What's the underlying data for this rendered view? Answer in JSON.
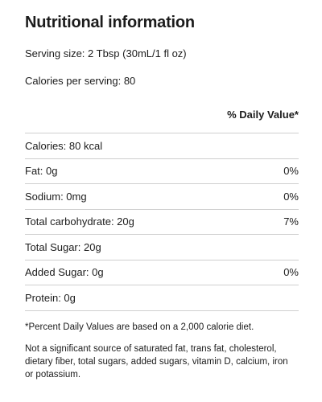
{
  "title": "Nutritional information",
  "serving_size": "Serving size: 2 Tbsp (30mL/1 fl oz)",
  "calories_per_serving": "Calories per serving: 80",
  "daily_value_header": "% Daily Value*",
  "nutrients": [
    {
      "label": "Calories: 80 kcal",
      "dv": ""
    },
    {
      "label": "Fat: 0g",
      "dv": "0%"
    },
    {
      "label": "Sodium: 0mg",
      "dv": "0%"
    },
    {
      "label": "Total carbohydrate: 20g",
      "dv": "7%"
    },
    {
      "label": "Total Sugar: 20g",
      "dv": ""
    },
    {
      "label": "Added Sugar: 0g",
      "dv": "0%"
    },
    {
      "label": "Protein: 0g",
      "dv": ""
    }
  ],
  "footnote": "*Percent Daily Values are based on a 2,000 calorie diet.",
  "disclaimer": "Not a significant source of saturated fat, trans fat, cholesterol, dietary fiber, total sugars, added sugars, vitamin D, calcium, iron or potassium."
}
